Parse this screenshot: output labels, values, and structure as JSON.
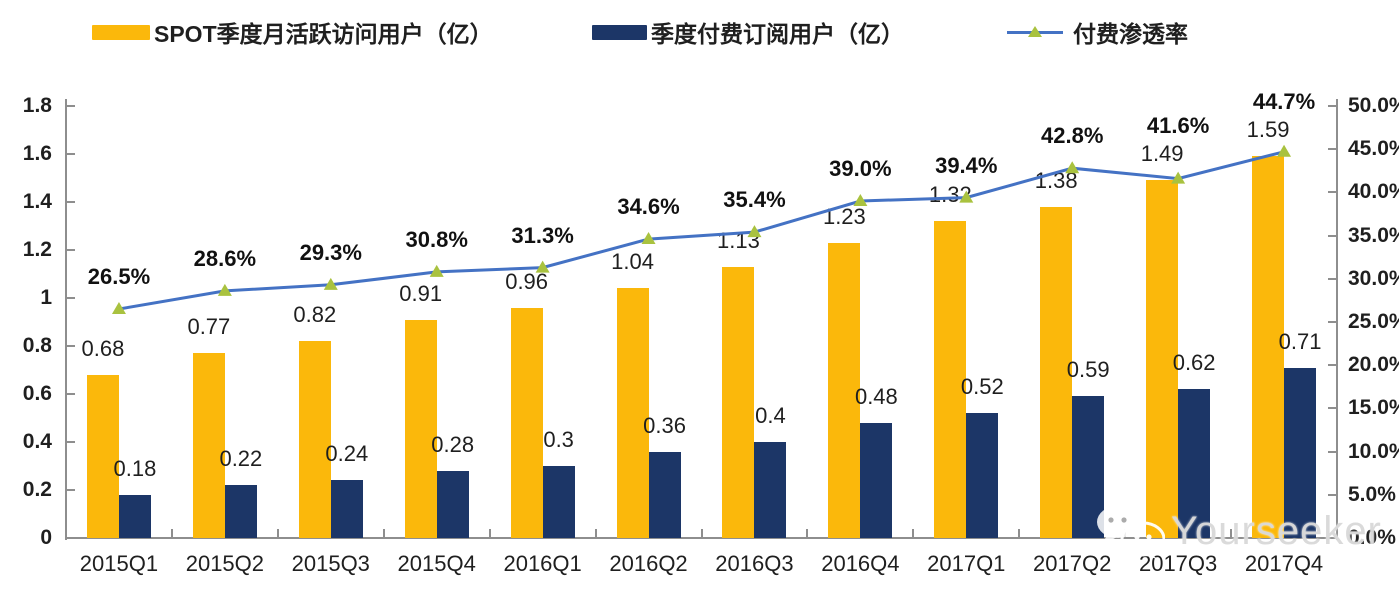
{
  "watermark": {
    "text": "Yourseeker",
    "icon": "wechat-bubbles"
  },
  "colors": {
    "mau_bar": "#FBB80B",
    "subs_bar": "#1C3667",
    "line": "#4472C4",
    "marker": "#A9C23F",
    "axis": "#8E8E8E",
    "text": "#1F1F1F",
    "watermark": "#D8D8D8"
  },
  "chart_data": {
    "type": "bar+line",
    "legend_position": "top",
    "grid": false,
    "categories": [
      "2015Q1",
      "2015Q2",
      "2015Q3",
      "2015Q4",
      "2016Q1",
      "2016Q2",
      "2016Q3",
      "2016Q4",
      "2017Q1",
      "2017Q2",
      "2017Q3",
      "2017Q4"
    ],
    "series": [
      {
        "name": "SPOT季度月活跃访问用户（亿）",
        "type": "bar",
        "axis": "left",
        "values": [
          0.68,
          0.77,
          0.82,
          0.91,
          0.96,
          1.04,
          1.13,
          1.23,
          1.32,
          1.38,
          1.49,
          1.59
        ]
      },
      {
        "name": "季度付费订阅用户（亿）",
        "type": "bar",
        "axis": "left",
        "values": [
          0.18,
          0.22,
          0.24,
          0.28,
          0.3,
          0.36,
          0.4,
          0.48,
          0.52,
          0.59,
          0.62,
          0.71
        ]
      },
      {
        "name": "付费渗透率",
        "type": "line",
        "axis": "right",
        "values_pct": [
          26.5,
          28.6,
          29.3,
          30.8,
          31.3,
          34.6,
          35.4,
          39.0,
          39.4,
          42.8,
          41.6,
          44.7
        ]
      }
    ],
    "left_axis": {
      "min": 0,
      "max": 1.8,
      "step": 0.2,
      "tick_labels": [
        "0",
        "0.2",
        "0.4",
        "0.6",
        "0.8",
        "1",
        "1.2",
        "1.4",
        "1.6",
        "1.8"
      ]
    },
    "right_axis": {
      "min": 0,
      "max": 50,
      "step": 5,
      "tick_labels": [
        "0.0%",
        "5.0%",
        "10.0%",
        "15.0%",
        "20.0%",
        "25.0%",
        "30.0%",
        "35.0%",
        "40.0%",
        "45.0%",
        "50.0%"
      ]
    }
  }
}
